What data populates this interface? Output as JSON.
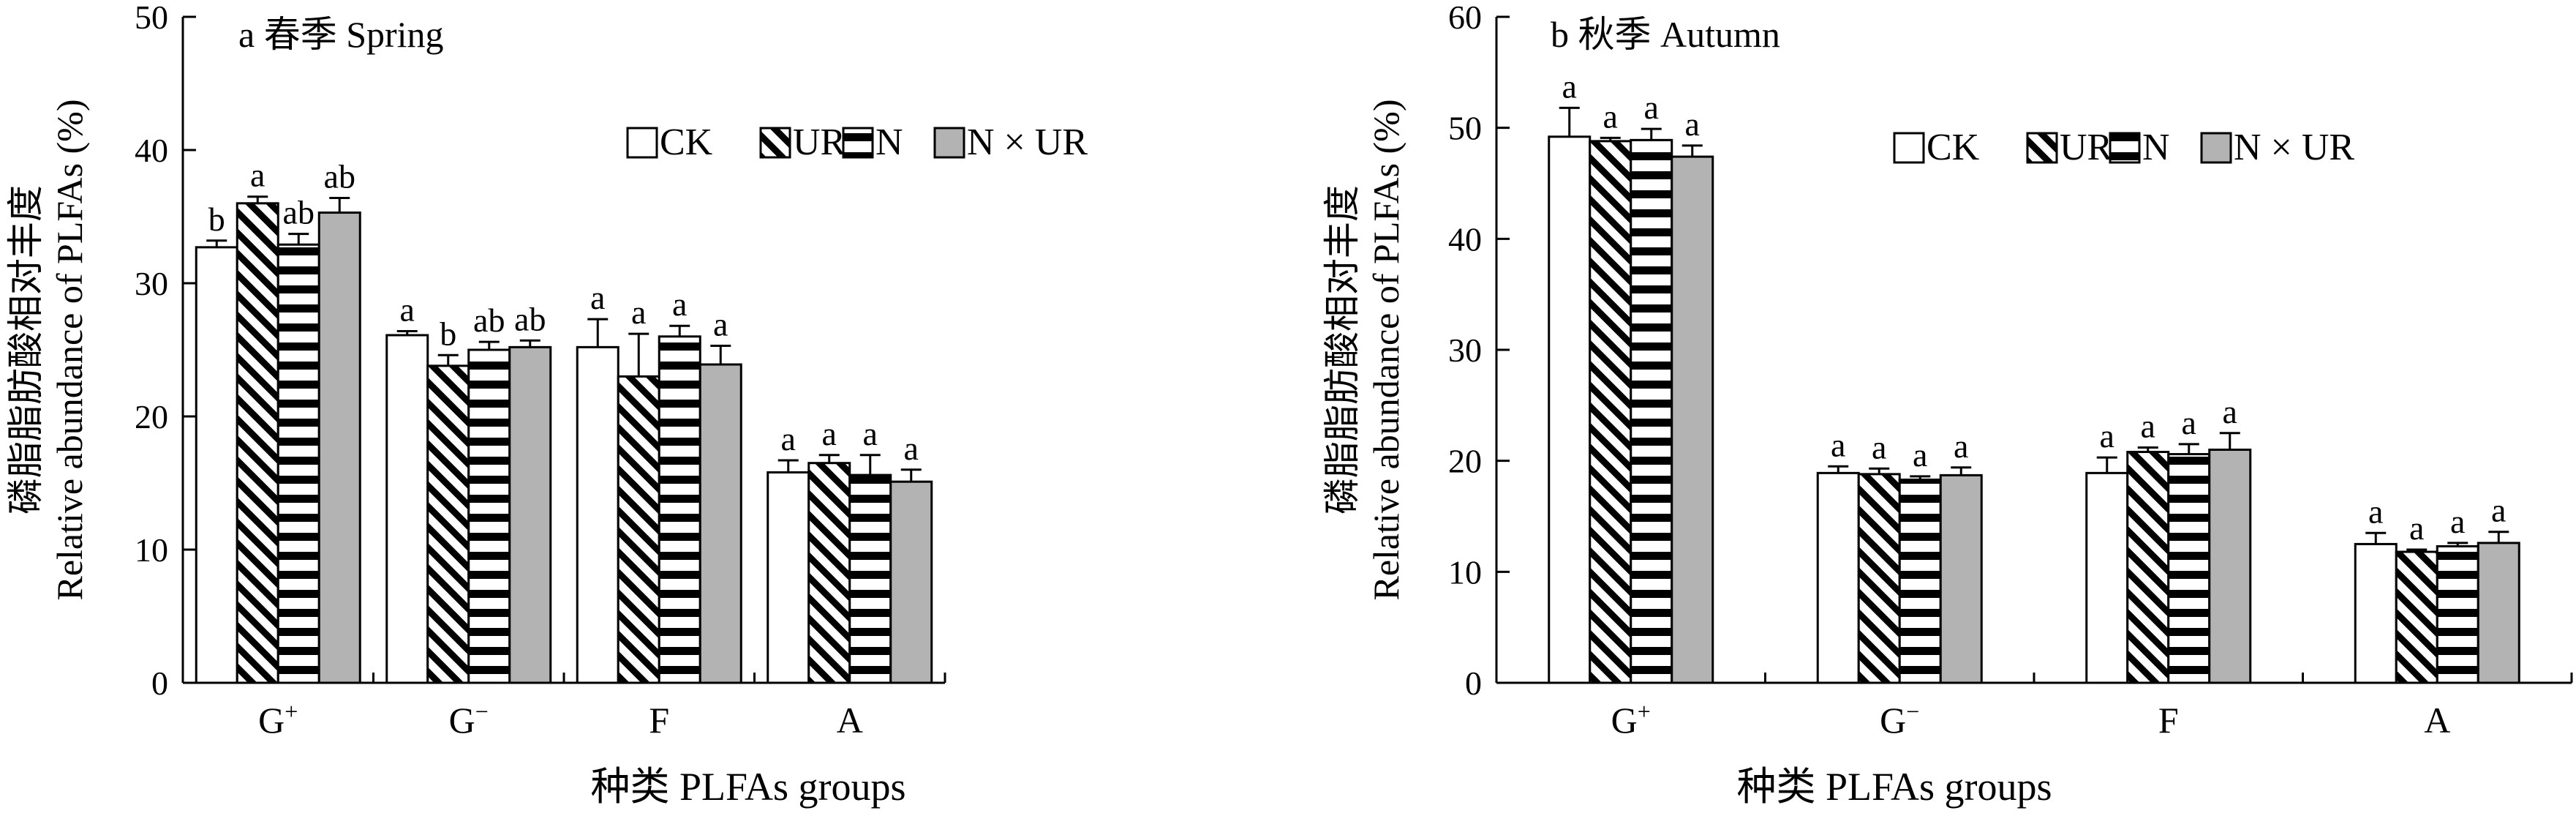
{
  "figure": {
    "patterns": [
      {
        "name": "CK",
        "fill": "#ffffff",
        "pattern": "none"
      },
      {
        "name": "UR",
        "fill": "#ffffff",
        "pattern": "diagonal-hatch"
      },
      {
        "name": "N",
        "fill": "#ffffff",
        "pattern": "horizontal-stripes"
      },
      {
        "name": "N × UR",
        "fill": "#b3b3b3",
        "pattern": "none"
      }
    ]
  },
  "chart_data": [
    {
      "type": "bar",
      "title": "a 春季 Spring",
      "xlabel": "种类 PLFAs groups",
      "ylabel_cn": "磷脂脂肪酸相对丰度",
      "ylabel_en": "Relative abundance of PLFAs (%)",
      "ylim": [
        0,
        50
      ],
      "yticks": [
        0,
        10,
        20,
        30,
        40,
        50
      ],
      "categories": [
        {
          "base": "G",
          "sup": "+"
        },
        {
          "base": "G",
          "sup": "−"
        },
        {
          "base": "F",
          "sup": ""
        },
        {
          "base": "A",
          "sup": ""
        }
      ],
      "legend": [
        "CK",
        "UR",
        "N",
        "N × UR"
      ],
      "legend_position": "top-right",
      "series": [
        {
          "name": "CK",
          "values": [
            32.7,
            26.1,
            25.2,
            15.8
          ],
          "errors": [
            0.5,
            0.3,
            2.1,
            0.9
          ],
          "letters": [
            "b",
            "a",
            "a",
            "a"
          ]
        },
        {
          "name": "UR",
          "values": [
            36.0,
            23.8,
            23.0,
            16.5
          ],
          "errors": [
            0.5,
            0.8,
            3.2,
            0.6
          ],
          "letters": [
            "a",
            "b",
            "a",
            "a"
          ]
        },
        {
          "name": "N",
          "values": [
            32.9,
            25.0,
            26.0,
            15.6
          ],
          "errors": [
            0.8,
            0.6,
            0.8,
            1.5
          ],
          "letters": [
            "ab",
            "ab",
            "a",
            "a"
          ]
        },
        {
          "name": "N × UR",
          "values": [
            35.3,
            25.2,
            23.9,
            15.1
          ],
          "errors": [
            1.1,
            0.5,
            1.4,
            0.9
          ],
          "letters": [
            "ab",
            "ab",
            "a",
            "a"
          ]
        }
      ]
    },
    {
      "type": "bar",
      "title": "b 秋季 Autumn",
      "xlabel": "种类 PLFAs groups",
      "ylabel_cn": "磷脂脂肪酸相对丰度",
      "ylabel_en": "Relative abundance of PLFAs (%)",
      "ylim": [
        0,
        60
      ],
      "yticks": [
        0,
        10,
        20,
        30,
        40,
        50,
        60
      ],
      "categories": [
        {
          "base": "G",
          "sup": "+"
        },
        {
          "base": "G",
          "sup": "−"
        },
        {
          "base": "F",
          "sup": ""
        },
        {
          "base": "A",
          "sup": ""
        }
      ],
      "legend": [
        "CK",
        "UR",
        "N",
        "N × UR"
      ],
      "legend_position": "top-right",
      "series": [
        {
          "name": "CK",
          "values": [
            49.2,
            18.9,
            18.9,
            12.5
          ],
          "errors": [
            2.6,
            0.6,
            1.4,
            1.0
          ],
          "letters": [
            "a",
            "a",
            "a",
            "a"
          ]
        },
        {
          "name": "UR",
          "values": [
            48.8,
            18.8,
            20.8,
            11.8
          ],
          "errors": [
            0.3,
            0.5,
            0.4,
            0.2
          ],
          "letters": [
            "a",
            "a",
            "a",
            "a"
          ]
        },
        {
          "name": "N",
          "values": [
            48.9,
            18.3,
            20.6,
            12.3
          ],
          "errors": [
            1.0,
            0.3,
            0.9,
            0.3
          ],
          "letters": [
            "a",
            "a",
            "a",
            "a"
          ]
        },
        {
          "name": "N × UR",
          "values": [
            47.4,
            18.7,
            21.0,
            12.6
          ],
          "errors": [
            1.0,
            0.7,
            1.5,
            1.0
          ],
          "letters": [
            "a",
            "a",
            "a",
            "a"
          ]
        }
      ]
    }
  ]
}
